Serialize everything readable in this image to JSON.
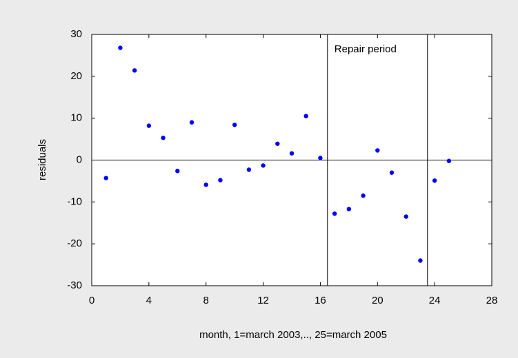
{
  "chart_data": {
    "type": "scatter",
    "xlabel": "month, 1=march 2003,.., 25=march 2005",
    "ylabel": "residuals",
    "annotation": "Repair period",
    "x": [
      1,
      2,
      3,
      4,
      5,
      6,
      7,
      8,
      9,
      10,
      11,
      12,
      13,
      14,
      15,
      16,
      17,
      18,
      19,
      20,
      21,
      22,
      23,
      24,
      25
    ],
    "series": [
      {
        "color": "#0000ff",
        "values": [
          -4.3,
          26.8,
          21.4,
          8.2,
          5.3,
          -2.6,
          9.0,
          -5.9,
          -4.8,
          8.4,
          -2.3,
          -1.3,
          3.9,
          1.6,
          10.5,
          0.5,
          -12.8,
          -11.7,
          -8.5,
          2.3,
          -3.0,
          -13.5,
          -24.0,
          -4.9,
          -0.2
        ]
      }
    ],
    "xlim": [
      0,
      28
    ],
    "xticks": [
      0,
      4,
      8,
      12,
      16,
      20,
      24,
      28
    ],
    "ylim": [
      -30,
      30
    ],
    "yticks": [
      -30,
      -20,
      -10,
      0,
      10,
      20,
      30
    ],
    "vlines": [
      16.5,
      23.5
    ],
    "hline": 0
  }
}
